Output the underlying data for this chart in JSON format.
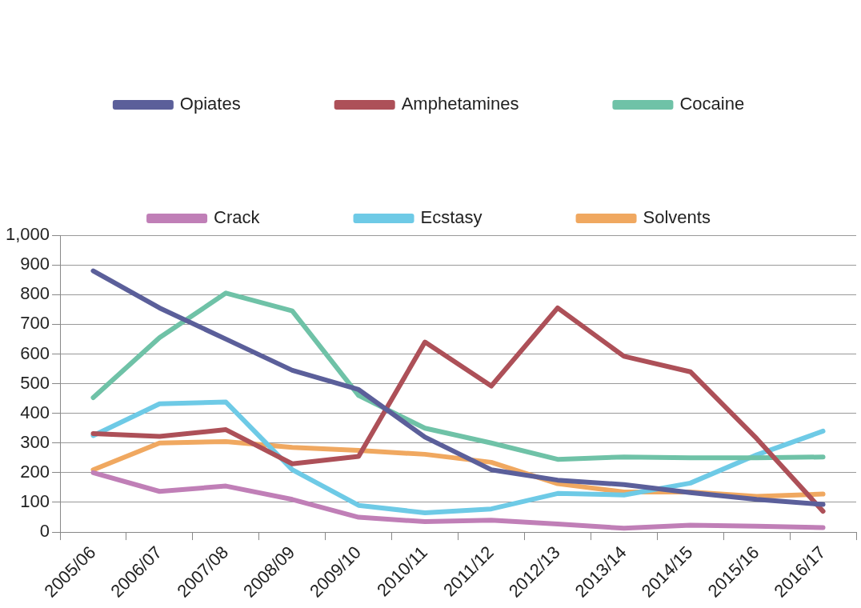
{
  "chart_data": {
    "type": "line",
    "categories": [
      "2005/06",
      "2006/07",
      "2007/08",
      "2008/09",
      "2009/10",
      "2010/11",
      "2011/12",
      "2012/13",
      "2013/14",
      "2014/15",
      "2015/16",
      "2016/17"
    ],
    "series": [
      {
        "name": "Opiates",
        "color": "#5b5f9a",
        "values": [
          880,
          755,
          650,
          545,
          480,
          320,
          210,
          175,
          160,
          133,
          110,
          93
        ]
      },
      {
        "name": "Amphetamines",
        "color": "#ad5058",
        "values": [
          332,
          322,
          345,
          230,
          255,
          640,
          492,
          755,
          592,
          540,
          315,
          70
        ]
      },
      {
        "name": "Cocaine",
        "color": "#6fc2a7",
        "values": [
          453,
          655,
          805,
          745,
          460,
          350,
          300,
          245,
          253,
          250,
          250,
          253
        ]
      },
      {
        "name": "Crack",
        "color": "#c07fb7",
        "values": [
          200,
          137,
          155,
          110,
          50,
          35,
          40,
          27,
          13,
          23,
          20,
          15
        ]
      },
      {
        "name": "Ecstasy",
        "color": "#6ecae6",
        "values": [
          325,
          432,
          438,
          210,
          90,
          65,
          78,
          130,
          125,
          165,
          260,
          340
        ]
      },
      {
        "name": "Solvents",
        "color": "#f0a860",
        "values": [
          210,
          300,
          305,
          285,
          275,
          262,
          235,
          163,
          135,
          135,
          120,
          128
        ]
      }
    ],
    "ylim": [
      0,
      1000
    ],
    "yticks": [
      0,
      100,
      200,
      300,
      400,
      500,
      600,
      700,
      800,
      900,
      {
        "value": 1000,
        "label": "1,000"
      }
    ],
    "grid": "y",
    "legend": "top",
    "marker": "none",
    "line_style": "solid"
  }
}
